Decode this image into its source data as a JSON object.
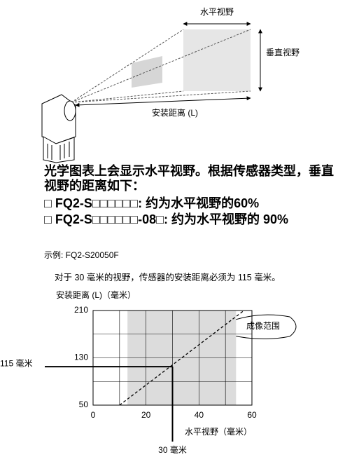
{
  "diagram": {
    "horizontal_fov": "水平视野",
    "vertical_fov": "垂直视野",
    "distance": "安装距离 (L)"
  },
  "text": {
    "intro": "光学图表上会显示水平视野。根据传感器类型，垂直视野的距离如下：",
    "items": [
      "□ FQ2-S□□□□□□: 约为水平视野的60%",
      "□ FQ2-S□□□□□□-08□: 约为水平视野的 90%"
    ],
    "example": "示例: FQ2-S20050F",
    "note": "对于 30 毫米的视野，传感器的安装距离必须为 115 毫米。"
  },
  "chart_data": {
    "type": "line",
    "ylabel": "安装距离 (L)（毫米）",
    "xlabel": "水平视野（毫米）",
    "x": [
      10,
      57
    ],
    "values": [
      50,
      210
    ],
    "color": "#000000",
    "xlim": [
      0,
      60
    ],
    "ylim": [
      50,
      210
    ],
    "xticks": [
      0,
      20,
      40,
      60
    ],
    "yticks": [
      50,
      130,
      210
    ],
    "grid": true,
    "imaging_range": {
      "label": "成像范围",
      "x": [
        13,
        54
      ]
    },
    "example_point": {
      "x": 30,
      "y": 115,
      "x_label": "30 毫米",
      "y_label": "115 毫米"
    }
  }
}
